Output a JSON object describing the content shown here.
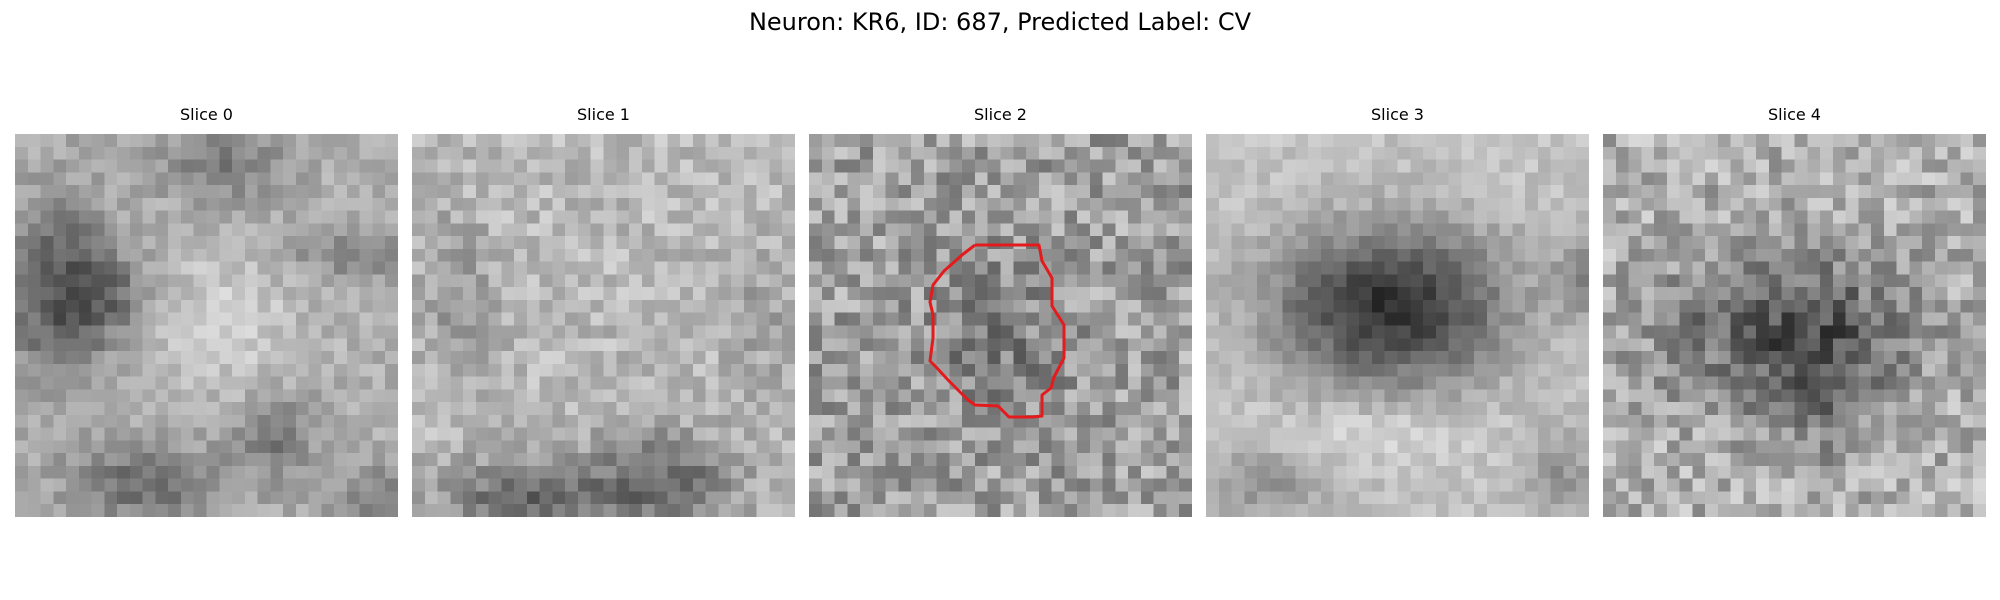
{
  "figure": {
    "title": "Neuron: KR6, ID: 687, Predicted Label: CV",
    "outline_color": "#e41a1c"
  },
  "slices": [
    {
      "title": "Slice 0",
      "pattern": "cell-left-with-bright-corridors",
      "has_outline": false
    },
    {
      "title": "Slice 1",
      "pattern": "noisy-bright-with-dark-blobs-bottom",
      "has_outline": false
    },
    {
      "title": "Slice 2",
      "pattern": "noisy-mid-gray-with-faint-center-cell",
      "has_outline": true
    },
    {
      "title": "Slice 3",
      "pattern": "dark-center-cell-over-bright-band",
      "has_outline": false
    },
    {
      "title": "Slice 4",
      "pattern": "dark-noisy-center-cell",
      "has_outline": false
    }
  ]
}
